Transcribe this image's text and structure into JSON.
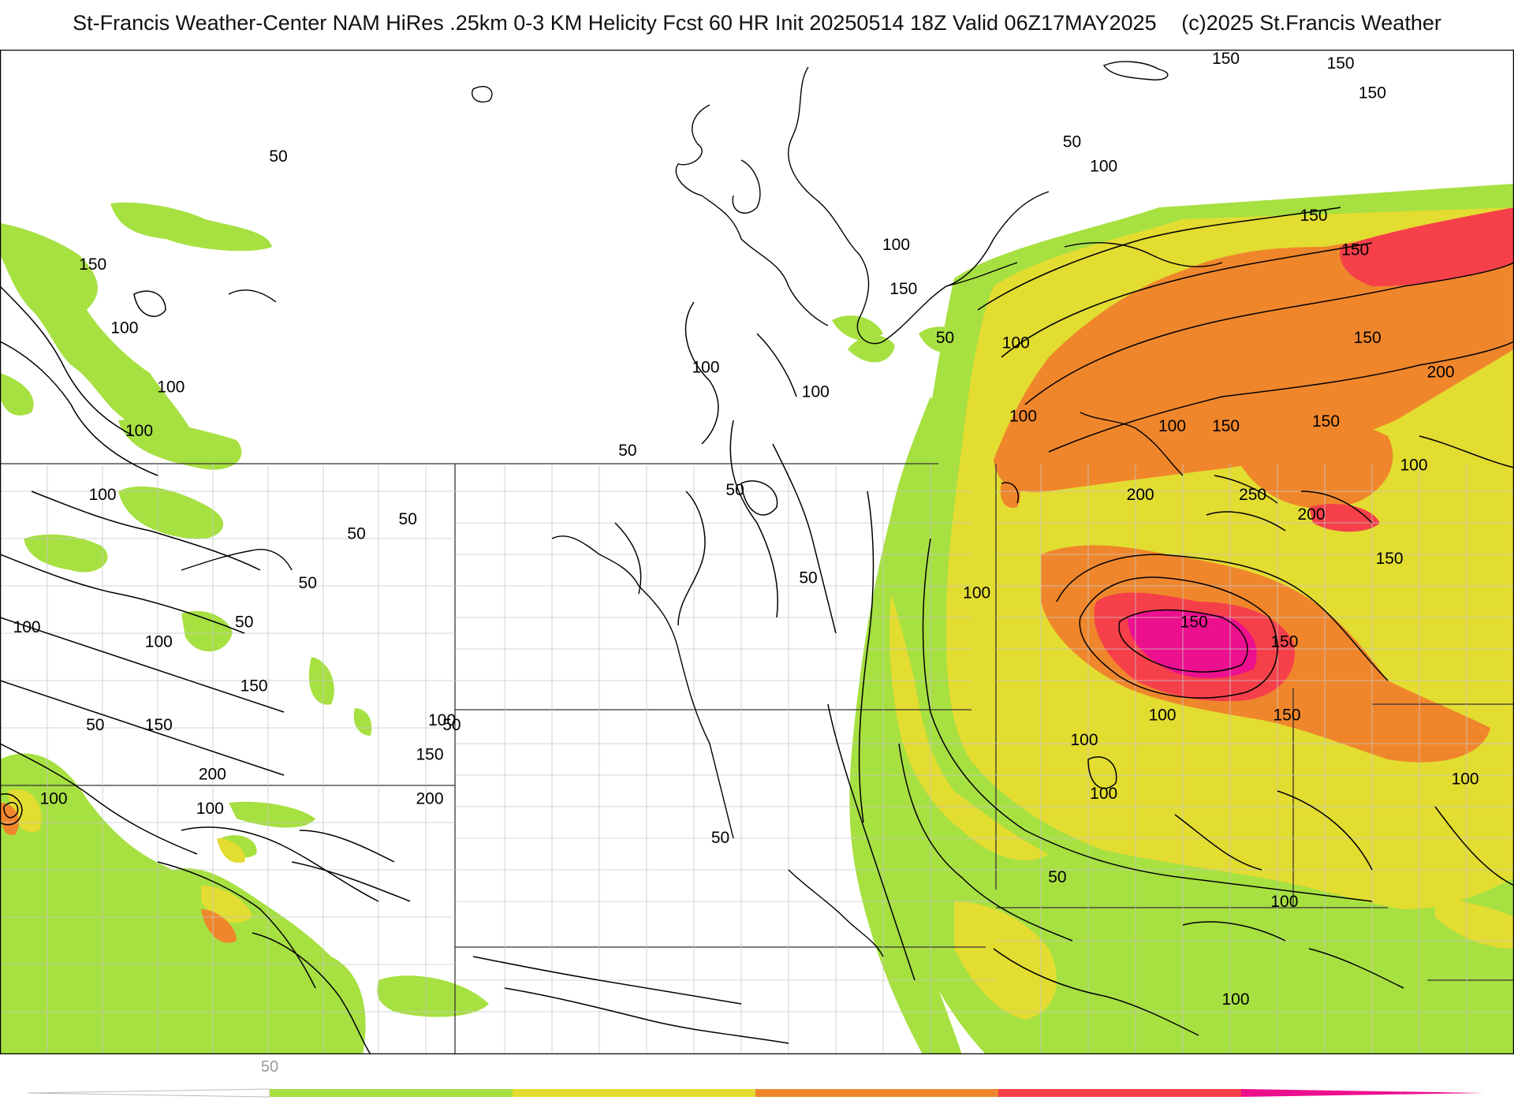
{
  "header": {
    "title": "St-Francis Weather-Center NAM HiRes .25km 0-3 KM Helicity Fcst 60 HR Init 20250514 18Z  Valid 06Z17MAY2025",
    "copyright": "(c)2025 St.Francis Weather"
  },
  "colors": {
    "c50": "#a7e041",
    "c100": "#e3dc31",
    "c150": "#f0862b",
    "c200": "#f5404a",
    "c250": "#ec0f8e",
    "contour": "#000000",
    "boundary": "#b8b8b8",
    "state": "#333333"
  },
  "legend": {
    "label": "50",
    "bands": [
      "50",
      "100",
      "150",
      "200",
      "250"
    ]
  },
  "contour_labels": [
    {
      "text": "50",
      "lon": -113.0,
      "lat": 51.3
    },
    {
      "text": "150",
      "lon": -120.6,
      "lat": 49.1
    },
    {
      "text": "100",
      "lon": -119.3,
      "lat": 47.8
    },
    {
      "text": "100",
      "lon": -117.4,
      "lat": 46.6
    },
    {
      "text": "100",
      "lon": -118.7,
      "lat": 45.7
    },
    {
      "text": "100",
      "lon": -120.2,
      "lat": 44.4
    },
    {
      "text": "50",
      "lon": -107.7,
      "lat": 43.9
    },
    {
      "text": "50",
      "lon": -109.8,
      "lat": 43.6
    },
    {
      "text": "50",
      "lon": -111.8,
      "lat": 42.6
    },
    {
      "text": "100",
      "lon": -123.3,
      "lat": 41.7
    },
    {
      "text": "50",
      "lon": -114.4,
      "lat": 41.8
    },
    {
      "text": "100",
      "lon": -117.9,
      "lat": 41.4
    },
    {
      "text": "150",
      "lon": -114.0,
      "lat": 40.5
    },
    {
      "text": "50",
      "lon": -120.5,
      "lat": 39.7
    },
    {
      "text": "150",
      "lon": -117.9,
      "lat": 39.7
    },
    {
      "text": "200",
      "lon": -115.7,
      "lat": 38.7
    },
    {
      "text": "100",
      "lon": -122.2,
      "lat": 38.2
    },
    {
      "text": "100",
      "lon": -115.8,
      "lat": 38.0
    },
    {
      "text": "100",
      "lon": -106.3,
      "lat": 39.8
    },
    {
      "text": "50",
      "lon": -105.9,
      "lat": 39.7
    },
    {
      "text": "150",
      "lon": -106.8,
      "lat": 39.1
    },
    {
      "text": "200",
      "lon": -106.8,
      "lat": 38.2
    },
    {
      "text": "50",
      "lon": -94.9,
      "lat": 37.4
    },
    {
      "text": "100",
      "lon": -87.7,
      "lat": 49.5
    },
    {
      "text": "50",
      "lon": -85.7,
      "lat": 47.6
    },
    {
      "text": "150",
      "lon": -87.4,
      "lat": 48.6
    },
    {
      "text": "100",
      "lon": -82.8,
      "lat": 47.5
    },
    {
      "text": "50",
      "lon": -80.5,
      "lat": 51.6
    },
    {
      "text": "100",
      "lon": -79.2,
      "lat": 51.1
    },
    {
      "text": "150",
      "lon": -74.2,
      "lat": 53.3
    },
    {
      "text": "150",
      "lon": -69.5,
      "lat": 53.2
    },
    {
      "text": "150",
      "lon": -68.2,
      "lat": 52.6
    },
    {
      "text": "150",
      "lon": -70.6,
      "lat": 50.1
    },
    {
      "text": "150",
      "lon": -68.9,
      "lat": 49.4
    },
    {
      "text": "150",
      "lon": -68.4,
      "lat": 47.6
    },
    {
      "text": "200",
      "lon": -65.4,
      "lat": 46.9
    },
    {
      "text": "100",
      "lon": -95.5,
      "lat": 47.0
    },
    {
      "text": "100",
      "lon": -91.0,
      "lat": 46.5
    },
    {
      "text": "100",
      "lon": -82.5,
      "lat": 46.0
    },
    {
      "text": "100",
      "lon": -76.4,
      "lat": 45.8
    },
    {
      "text": "150",
      "lon": -74.2,
      "lat": 45.8
    },
    {
      "text": "150",
      "lon": -70.1,
      "lat": 45.9
    },
    {
      "text": "100",
      "lon": -66.5,
      "lat": 45.0
    },
    {
      "text": "50",
      "lon": -98.7,
      "lat": 45.3
    },
    {
      "text": "50",
      "lon": -94.3,
      "lat": 44.5
    },
    {
      "text": "200",
      "lon": -77.7,
      "lat": 44.4
    },
    {
      "text": "250",
      "lon": -73.1,
      "lat": 44.4
    },
    {
      "text": "200",
      "lon": -70.7,
      "lat": 44.0
    },
    {
      "text": "150",
      "lon": -67.5,
      "lat": 43.1
    },
    {
      "text": "50",
      "lon": -91.3,
      "lat": 42.7
    },
    {
      "text": "100",
      "lon": -84.4,
      "lat": 42.4
    },
    {
      "text": "150",
      "lon": -75.5,
      "lat": 41.8
    },
    {
      "text": "150",
      "lon": -71.8,
      "lat": 41.4
    },
    {
      "text": "100",
      "lon": -76.8,
      "lat": 39.9
    },
    {
      "text": "150",
      "lon": -71.7,
      "lat": 39.9
    },
    {
      "text": "100",
      "lon": -80.0,
      "lat": 39.4
    },
    {
      "text": "100",
      "lon": -79.2,
      "lat": 38.3
    },
    {
      "text": "100",
      "lon": -64.4,
      "lat": 38.6
    },
    {
      "text": "50",
      "lon": -81.1,
      "lat": 36.6
    },
    {
      "text": "100",
      "lon": -71.8,
      "lat": 36.1
    },
    {
      "text": "100",
      "lon": -73.8,
      "lat": 34.1
    }
  ]
}
